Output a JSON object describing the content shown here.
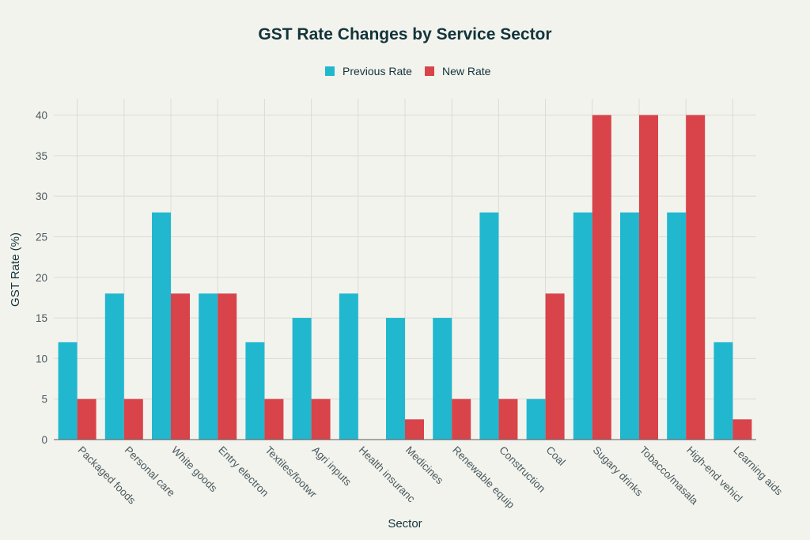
{
  "chart_data": {
    "type": "bar",
    "title": "GST Rate Changes by Service Sector",
    "xlabel": "Sector",
    "ylabel": "GST Rate (%)",
    "ylim": [
      0,
      42
    ],
    "yticks": [
      0,
      5,
      10,
      15,
      20,
      25,
      30,
      35,
      40
    ],
    "grid": true,
    "legend_position": "top-center",
    "categories": [
      "Packaged foods",
      "Personal care",
      "White goods",
      "Entry electron",
      "Textiles/footwr",
      "Agri inputs",
      "Health insuranc",
      "Medicines",
      "Renewable equip",
      "Construction",
      "Coal",
      "Sugary drinks",
      "Tobacco/masala",
      "High-end vehicl",
      "Learning aids"
    ],
    "series": [
      {
        "name": "Previous Rate",
        "color": "#21b8cf",
        "values": [
          12,
          18,
          28,
          18,
          12,
          15,
          18,
          15,
          15,
          28,
          5,
          28,
          28,
          28,
          12
        ]
      },
      {
        "name": "New Rate",
        "color": "#d9434a",
        "values": [
          5,
          5,
          18,
          18,
          5,
          5,
          0,
          2.5,
          5,
          5,
          18,
          40,
          40,
          40,
          2.5
        ]
      }
    ]
  }
}
